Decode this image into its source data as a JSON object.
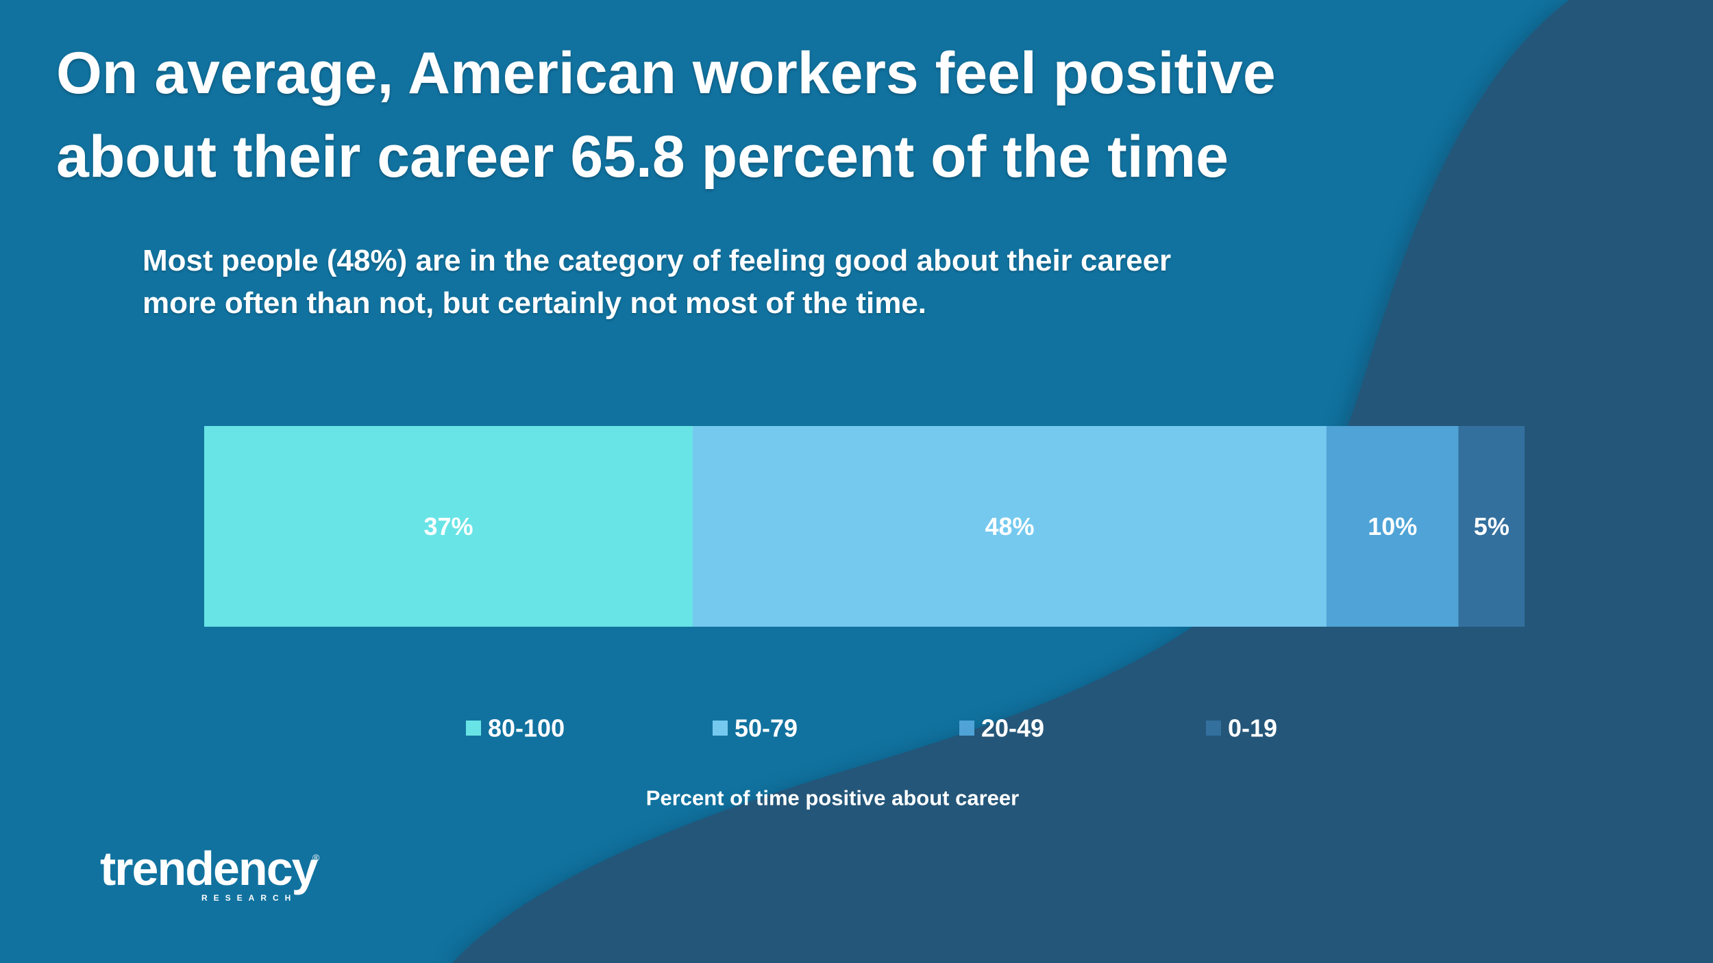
{
  "slide": {
    "title_lines": [
      "On average, American workers feel positive",
      "about their career 65.8 percent of the time"
    ],
    "subtitle_lines": [
      "Most people (48%) are in the category of feeling good about their career",
      "more often than not, but certainly not most of the time."
    ],
    "colors": {
      "background": "#11729f",
      "background_wave": "#245679",
      "text": "#ffffff"
    }
  },
  "chart_data": {
    "type": "bar",
    "orientation": "horizontal",
    "stacked": true,
    "percent_stacked": true,
    "categories": [
      ""
    ],
    "series": [
      {
        "name": "80-100",
        "values": [
          37
        ],
        "label": "37%",
        "color": "#69e4e6"
      },
      {
        "name": "50-79",
        "values": [
          48
        ],
        "label": "48%",
        "color": "#75c9ef"
      },
      {
        "name": "20-49",
        "values": [
          10
        ],
        "label": "10%",
        "color": "#4fa3d6"
      },
      {
        "name": "0-19",
        "values": [
          5
        ],
        "label": "5%",
        "color": "#33709e"
      }
    ],
    "xlim": [
      0,
      100
    ],
    "xlabel": "Percent of time positive about career",
    "legend": "bottom",
    "grid": false
  },
  "logo": {
    "word": "trendency",
    "sub": "RESEARCH",
    "mark": "®"
  }
}
